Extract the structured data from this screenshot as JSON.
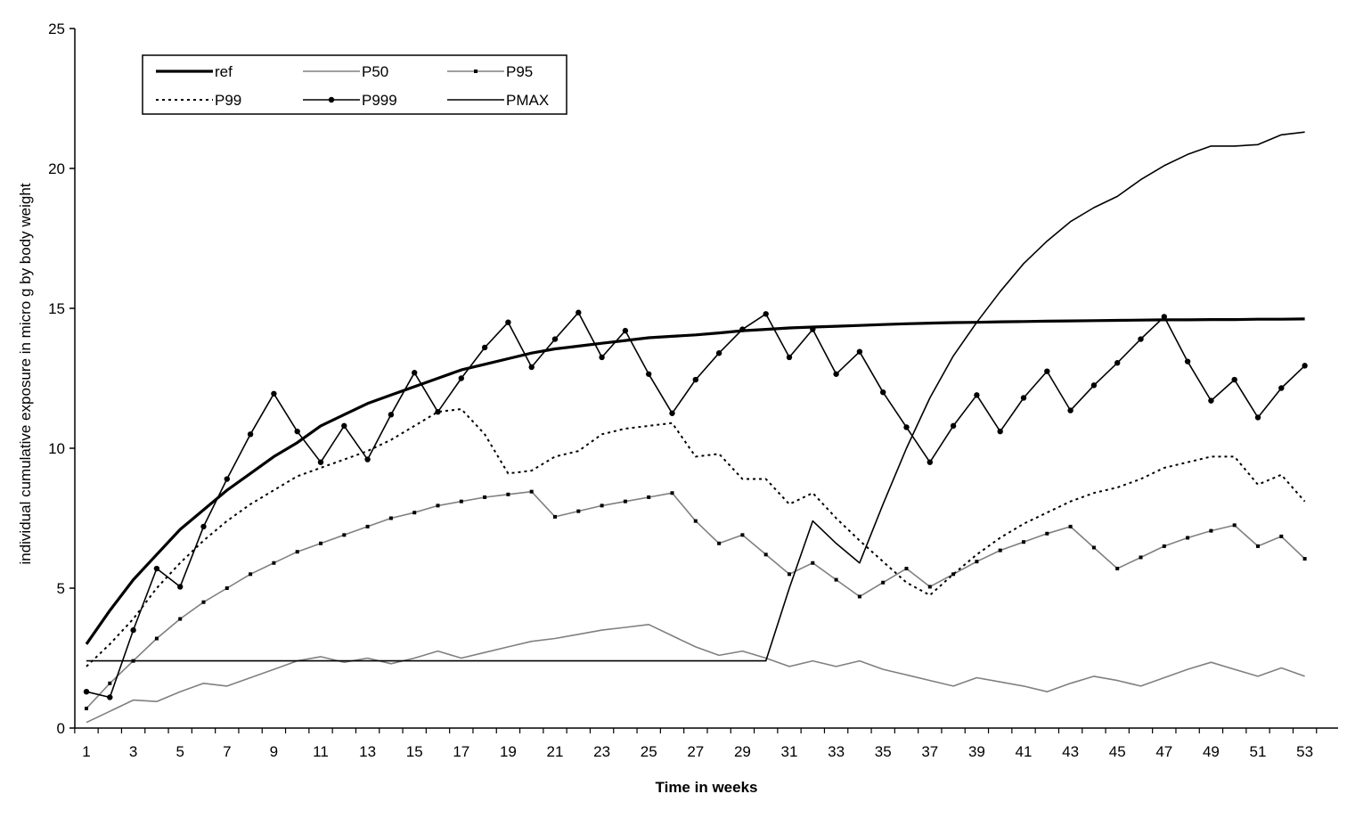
{
  "chart_data": {
    "type": "line",
    "title": "",
    "xlabel": "Time in weeks",
    "ylabel": "individual cumulative exposure in micro g by body weight",
    "xlim": [
      1,
      53
    ],
    "ylim": [
      0,
      25
    ],
    "y_ticks": [
      0,
      5,
      10,
      15,
      20,
      25
    ],
    "x_tick_labels": [
      "1",
      "3",
      "5",
      "7",
      "9",
      "11",
      "13",
      "15",
      "17",
      "19",
      "21",
      "23",
      "25",
      "27",
      "29",
      "31",
      "33",
      "35",
      "37",
      "39",
      "41",
      "43",
      "45",
      "47",
      "49",
      "51",
      "53"
    ],
    "grid": false,
    "legend_position": "top-left",
    "x": [
      1,
      2,
      3,
      4,
      5,
      6,
      7,
      8,
      9,
      10,
      11,
      12,
      13,
      14,
      15,
      16,
      17,
      18,
      19,
      20,
      21,
      22,
      23,
      24,
      25,
      26,
      27,
      28,
      29,
      30,
      31,
      32,
      33,
      34,
      35,
      36,
      37,
      38,
      39,
      40,
      41,
      42,
      43,
      44,
      45,
      46,
      47,
      48,
      49,
      50,
      51,
      52,
      53
    ],
    "series": [
      {
        "name": "ref",
        "style": "thick",
        "values": [
          3.0,
          4.2,
          5.3,
          6.2,
          7.1,
          7.8,
          8.5,
          9.1,
          9.7,
          10.2,
          10.8,
          11.2,
          11.6,
          11.9,
          12.2,
          12.5,
          12.8,
          13.0,
          13.2,
          13.4,
          13.55,
          13.65,
          13.75,
          13.85,
          13.95,
          14.0,
          14.05,
          14.12,
          14.2,
          14.25,
          14.3,
          14.33,
          14.36,
          14.39,
          14.42,
          14.45,
          14.47,
          14.49,
          14.5,
          14.52,
          14.53,
          14.54,
          14.55,
          14.56,
          14.57,
          14.58,
          14.59,
          14.59,
          14.6,
          14.6,
          14.61,
          14.61,
          14.62
        ]
      },
      {
        "name": "P50",
        "style": "thin",
        "values": [
          0.2,
          0.6,
          1.0,
          0.95,
          1.3,
          1.6,
          1.5,
          1.8,
          2.1,
          2.4,
          2.55,
          2.35,
          2.5,
          2.3,
          2.5,
          2.75,
          2.5,
          2.7,
          2.9,
          3.1,
          3.2,
          3.35,
          3.5,
          3.6,
          3.7,
          3.3,
          2.9,
          2.6,
          2.75,
          2.5,
          2.2,
          2.4,
          2.2,
          2.4,
          2.1,
          1.9,
          1.7,
          1.5,
          1.8,
          1.65,
          1.5,
          1.3,
          1.6,
          1.85,
          1.7,
          1.5,
          1.8,
          2.1,
          2.35,
          2.1,
          1.85,
          2.15,
          1.85
        ]
      },
      {
        "name": "P95",
        "style": "markers",
        "values": [
          0.7,
          1.6,
          2.4,
          3.2,
          3.9,
          4.5,
          5.0,
          5.5,
          5.9,
          6.3,
          6.6,
          6.9,
          7.2,
          7.5,
          7.7,
          7.95,
          8.1,
          8.25,
          8.35,
          8.45,
          7.55,
          7.75,
          7.95,
          8.1,
          8.25,
          8.4,
          7.4,
          6.6,
          6.9,
          6.2,
          5.5,
          5.9,
          5.3,
          4.7,
          5.2,
          5.7,
          5.05,
          5.5,
          5.95,
          6.35,
          6.65,
          6.95,
          7.2,
          6.45,
          5.7,
          6.1,
          6.5,
          6.8,
          7.05,
          7.25,
          6.5,
          6.85,
          6.05
        ]
      },
      {
        "name": "P99",
        "style": "dotted",
        "values": [
          2.2,
          3.0,
          3.9,
          5.0,
          5.9,
          6.7,
          7.4,
          8.0,
          8.5,
          9.0,
          9.3,
          9.6,
          9.9,
          10.3,
          10.8,
          11.3,
          11.4,
          10.5,
          9.1,
          9.2,
          9.7,
          9.9,
          10.5,
          10.7,
          10.8,
          10.9,
          9.7,
          9.8,
          8.9,
          8.9,
          8.0,
          8.4,
          7.5,
          6.7,
          5.95,
          5.2,
          4.75,
          5.5,
          6.2,
          6.8,
          7.3,
          7.7,
          8.1,
          8.4,
          8.6,
          8.9,
          9.3,
          9.5,
          9.7,
          9.7,
          8.7,
          9.05,
          8.1
        ]
      },
      {
        "name": "P999",
        "style": "filled-markers",
        "values": [
          1.3,
          1.1,
          3.5,
          5.7,
          5.05,
          7.2,
          8.9,
          10.5,
          11.95,
          10.6,
          9.5,
          10.8,
          9.6,
          11.2,
          12.7,
          11.3,
          12.5,
          13.6,
          14.5,
          12.9,
          13.9,
          14.85,
          13.25,
          14.2,
          12.65,
          11.25,
          12.45,
          13.4,
          14.25,
          14.8,
          13.25,
          14.25,
          12.65,
          13.45,
          12.0,
          10.75,
          9.5,
          10.8,
          11.9,
          10.6,
          11.8,
          12.75,
          11.35,
          12.25,
          13.05,
          13.9,
          14.7,
          13.1,
          11.7,
          12.45,
          11.1,
          12.15,
          12.95
        ]
      },
      {
        "name": "PMAX",
        "style": "thin-black",
        "values": [
          2.4,
          2.4,
          2.4,
          2.4,
          2.4,
          2.4,
          2.4,
          2.4,
          2.4,
          2.4,
          2.4,
          2.4,
          2.4,
          2.4,
          2.4,
          2.4,
          2.4,
          2.4,
          2.4,
          2.4,
          2.4,
          2.4,
          2.4,
          2.4,
          2.4,
          2.4,
          2.4,
          2.4,
          2.4,
          2.4,
          5.0,
          7.4,
          6.6,
          5.9,
          8.0,
          10.0,
          11.8,
          13.3,
          14.5,
          15.6,
          16.6,
          17.4,
          18.1,
          18.6,
          19.0,
          19.6,
          20.1,
          20.5,
          20.8,
          20.8,
          20.85,
          21.2,
          21.3
        ]
      }
    ]
  }
}
